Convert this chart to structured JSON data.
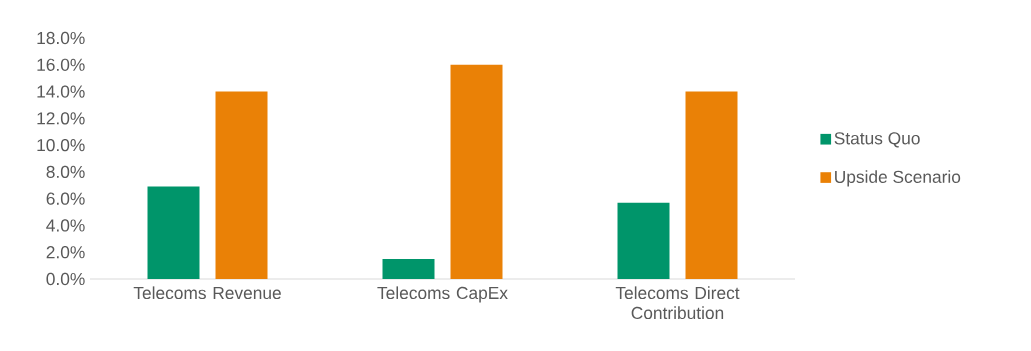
{
  "chart_data": {
    "type": "bar",
    "categories": [
      "Telecoms Revenue",
      "Telecoms CapEx",
      "Telecoms Direct Contribution"
    ],
    "series": [
      {
        "name": "Status Quo",
        "color": "#00956a",
        "values": [
          6.9,
          1.5,
          5.7
        ]
      },
      {
        "name": "Upside Scenario",
        "color": "#ea8106",
        "values": [
          14.0,
          16.0,
          14.0
        ]
      }
    ],
    "ylim": [
      0,
      18
    ],
    "yticks": [
      {
        "value": 0,
        "label": "0.0%"
      },
      {
        "value": 2,
        "label": "2.0%"
      },
      {
        "value": 4,
        "label": "4.0%"
      },
      {
        "value": 6,
        "label": "6.0%"
      },
      {
        "value": 8,
        "label": "8.0%"
      },
      {
        "value": 10,
        "label": "10.0%"
      },
      {
        "value": 12,
        "label": "12.0%"
      },
      {
        "value": 14,
        "label": "14.0%"
      },
      {
        "value": 16,
        "label": "16.0%"
      },
      {
        "value": 18,
        "label": "18.0%"
      }
    ],
    "grid": false,
    "legend": "right"
  }
}
